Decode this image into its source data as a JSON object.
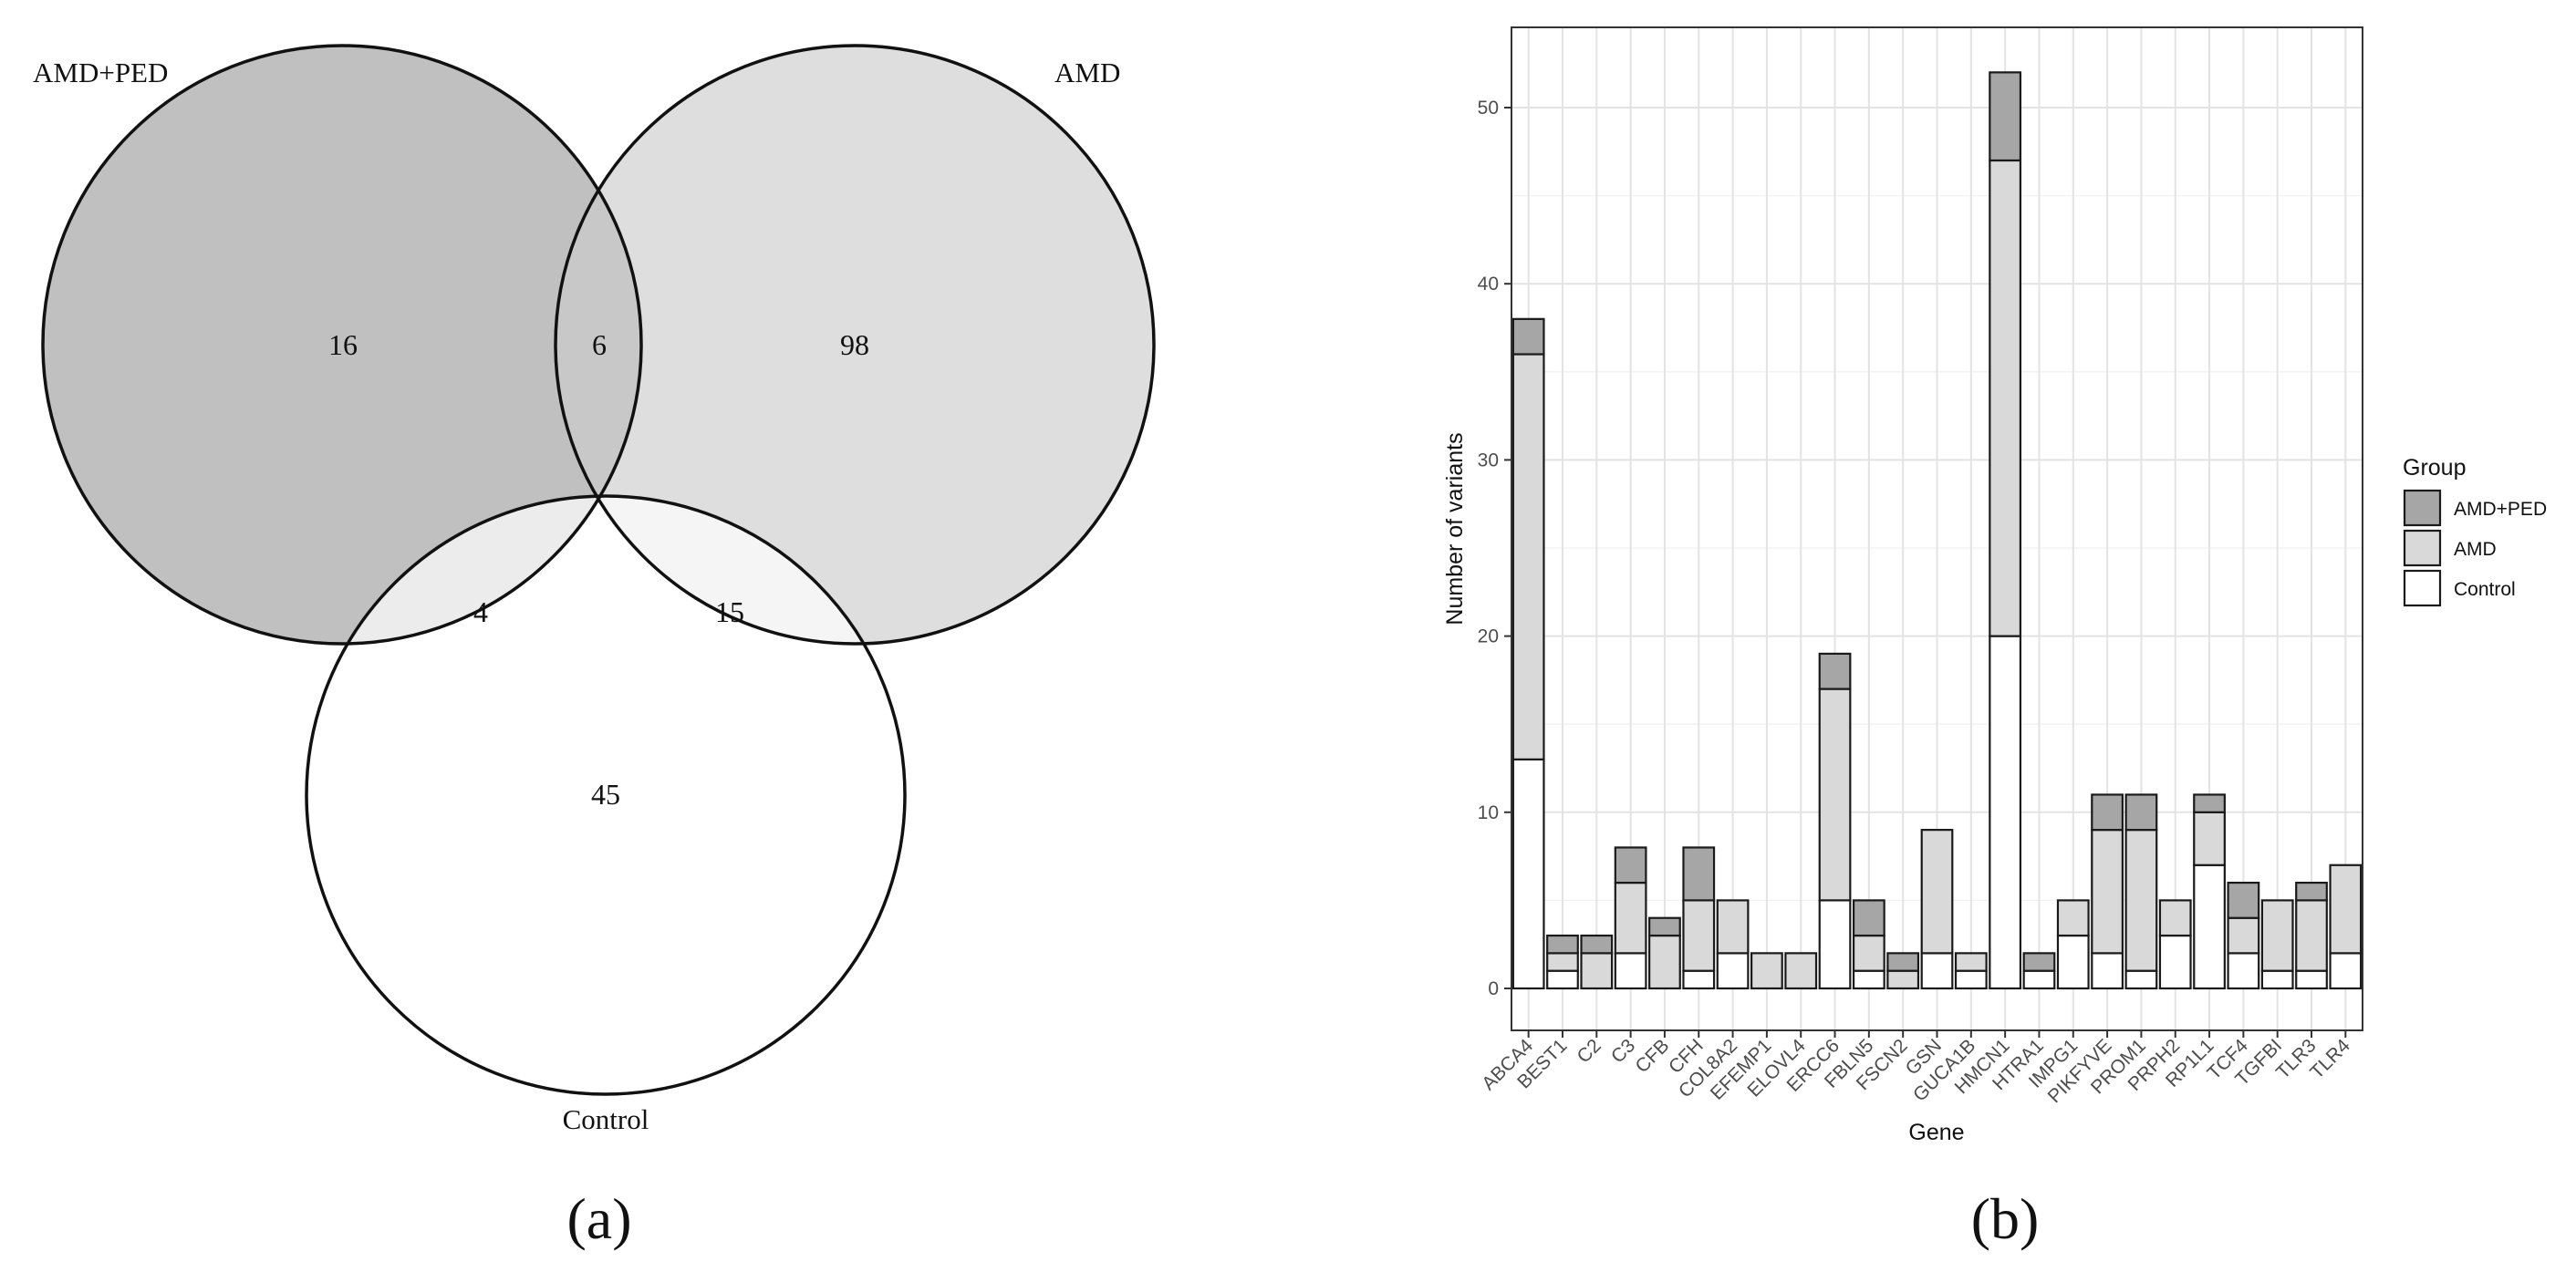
{
  "venn": {
    "sets": [
      {
        "name": "AMD+PED",
        "color": "#c0c0c0"
      },
      {
        "name": "AMD",
        "color": "#dedede"
      },
      {
        "name": "Control",
        "color": "#ffffff"
      }
    ],
    "regions": {
      "amdped_only": 16,
      "amdped_amd": 6,
      "amd_only": 98,
      "amdped_control": 4,
      "amd_control": 15,
      "control_only": 45
    },
    "intersection_colors": {
      "amdped_amd": "#c8c8c8",
      "amdped_control": "#ececec",
      "amd_control": "#f5f5f5"
    },
    "panel_label": "(a)"
  },
  "chart_data": {
    "type": "bar",
    "stacked": true,
    "panel_label": "(b)",
    "xlabel": "Gene",
    "ylabel": "Number of variants",
    "ylim": [
      0,
      55
    ],
    "yticks": [
      0,
      10,
      20,
      30,
      40,
      50
    ],
    "grid": true,
    "legend": {
      "title": "Group",
      "placement": "right"
    },
    "categories": [
      "ABCA4",
      "BEST1",
      "C2",
      "C3",
      "CFB",
      "CFH",
      "COL8A2",
      "EFEMP1",
      "ELOVL4",
      "ERCC6",
      "FBLN5",
      "FSCN2",
      "GSN",
      "GUCA1B",
      "HMCN1",
      "HTRA1",
      "IMPG1",
      "PIKFYVE",
      "PROM1",
      "PRPH2",
      "RP1L1",
      "TCF4",
      "TGFBI",
      "TLR3",
      "TLR4"
    ],
    "series": [
      {
        "name": "AMD+PED",
        "color": "#a6a6a6",
        "values": [
          2,
          1,
          1,
          2,
          1,
          3,
          0,
          0,
          0,
          2,
          2,
          1,
          0,
          0,
          5,
          1,
          0,
          2,
          2,
          0,
          1,
          2,
          0,
          1,
          0
        ]
      },
      {
        "name": "AMD",
        "color": "#d9d9d9",
        "values": [
          23,
          1,
          2,
          4,
          3,
          4,
          3,
          2,
          2,
          12,
          2,
          1,
          7,
          1,
          27,
          0,
          2,
          7,
          8,
          2,
          3,
          2,
          4,
          4,
          5
        ]
      },
      {
        "name": "Control",
        "color": "#ffffff",
        "values": [
          13,
          1,
          0,
          2,
          0,
          1,
          2,
          0,
          0,
          5,
          1,
          0,
          2,
          1,
          20,
          1,
          3,
          2,
          1,
          3,
          7,
          2,
          1,
          1,
          2
        ]
      }
    ]
  }
}
